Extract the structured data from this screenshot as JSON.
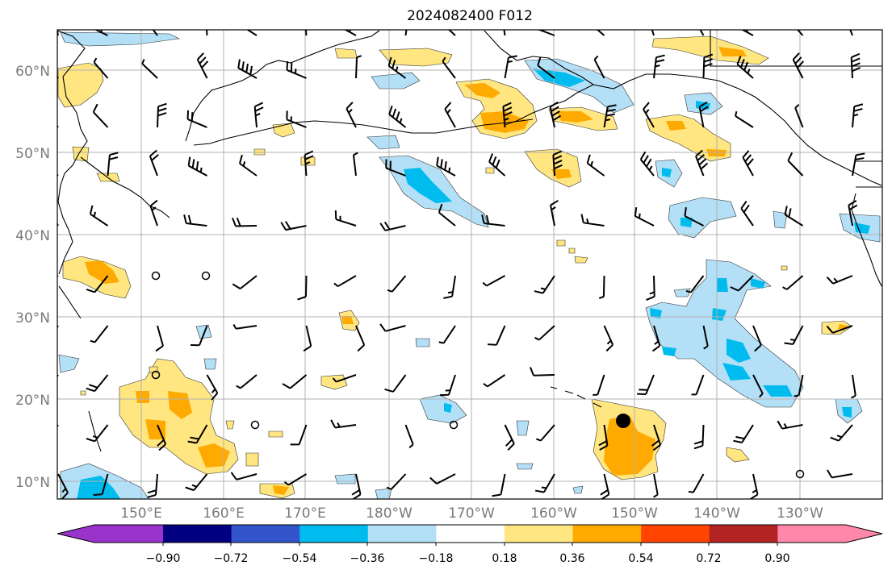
{
  "title": "2024082400 F012",
  "map": {
    "lat_labels": [
      "60°N",
      "50°N",
      "40°N",
      "30°N",
      "20°N",
      "10°N"
    ],
    "lon_labels": [
      "150°E",
      "160°E",
      "170°E",
      "180°W",
      "170°W",
      "160°W",
      "150°W",
      "140°W",
      "130°W"
    ],
    "storm_marker": {
      "lon": -151.9,
      "lat": 17.5
    }
  },
  "colorbar": {
    "tick_labels": [
      "−0.90",
      "−0.72",
      "−0.54",
      "−0.36",
      "−0.18",
      "0.18",
      "0.36",
      "0.54",
      "0.72",
      "0.90"
    ],
    "colors": [
      "#9933cc",
      "#000080",
      "#3355cc",
      "#00bbee",
      "#b3e0f7",
      "#ffffff",
      "#ffe680",
      "#ffaa00",
      "#ff4500",
      "#b22222",
      "#ff88aa"
    ]
  },
  "shading_colors": {
    "neg_light": "#b3e0f7",
    "neg_mid": "#00bbee",
    "pos_light": "#ffe680",
    "pos_mid": "#ffaa00"
  }
}
